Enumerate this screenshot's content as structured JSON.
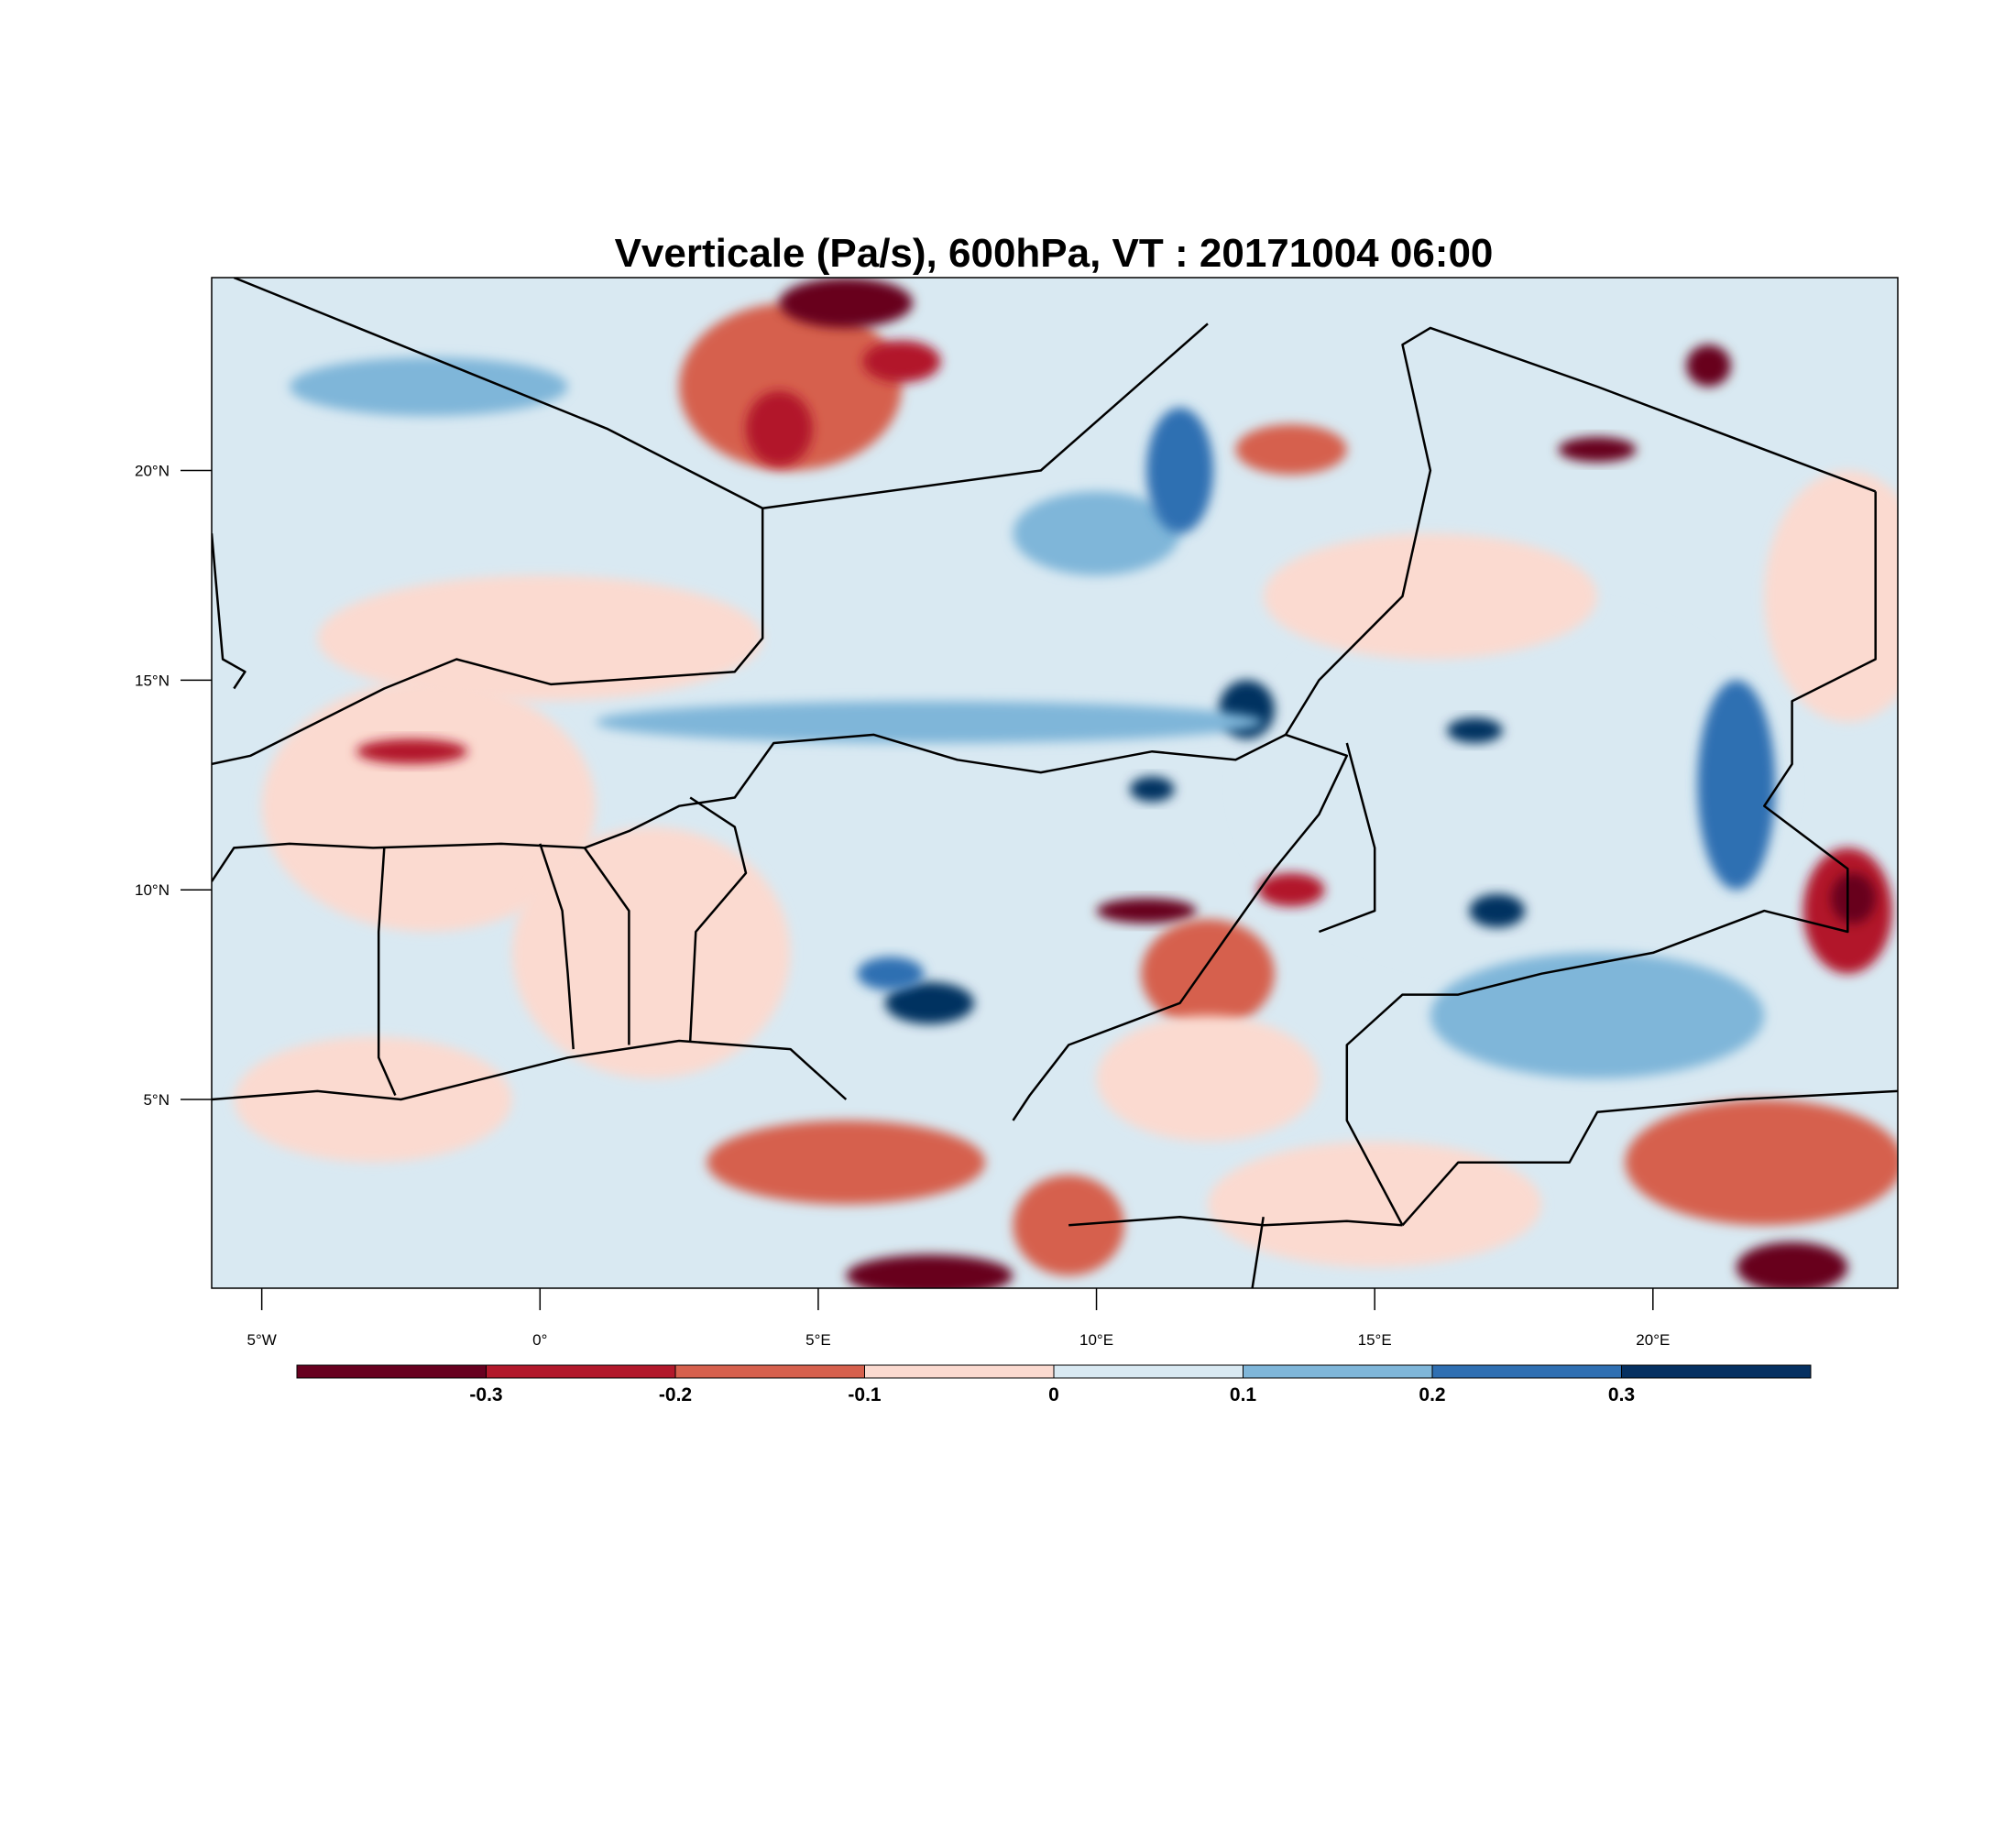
{
  "title": "Vverticale (Pa/s), 600hPa, VT : 20171004  06:00",
  "map": {
    "lon_range": [
      -5.9,
      24.4
    ],
    "lat_range": [
      0.5,
      24.6
    ],
    "lon_ticks": [
      {
        "value": -5,
        "label": "5°W"
      },
      {
        "value": 0,
        "label": "0°"
      },
      {
        "value": 5,
        "label": "5°E"
      },
      {
        "value": 10,
        "label": "10°E"
      },
      {
        "value": 15,
        "label": "15°E"
      },
      {
        "value": 20,
        "label": "20°E"
      }
    ],
    "lat_ticks": [
      {
        "value": 5,
        "label": "5°N"
      },
      {
        "value": 10,
        "label": "10°N"
      },
      {
        "value": 15,
        "label": "15°N"
      },
      {
        "value": 20,
        "label": "20°N"
      }
    ],
    "background_color": "#d9e9f2"
  },
  "colorbar": {
    "colors": [
      "#67001f",
      "#b2182b",
      "#d6604d",
      "#fbdad0",
      "#d9e9f2",
      "#7fb6d9",
      "#2f6fb2",
      "#053061"
    ],
    "labels": [
      "-0.3",
      "-0.2",
      "-0.1",
      "0",
      "0.1",
      "0.2",
      "0.3"
    ]
  },
  "fields": [
    {
      "lon": -2.0,
      "lat": 12.0,
      "rx": 3.0,
      "ry": 3.0,
      "level": 3
    },
    {
      "lon": 2.0,
      "lat": 8.5,
      "rx": 2.5,
      "ry": 3.0,
      "level": 3
    },
    {
      "lon": 0.0,
      "lat": 16.0,
      "rx": 4.0,
      "ry": 1.5,
      "level": 3
    },
    {
      "lon": 4.5,
      "lat": 22.0,
      "rx": 2.0,
      "ry": 2.0,
      "level": 2
    },
    {
      "lon": 5.5,
      "lat": 24.0,
      "rx": 1.2,
      "ry": 0.6,
      "level": 0
    },
    {
      "lon": 4.3,
      "lat": 21.0,
      "rx": 0.6,
      "ry": 0.9,
      "level": 1
    },
    {
      "lon": 6.5,
      "lat": 22.6,
      "rx": 0.7,
      "ry": 0.5,
      "level": 1
    },
    {
      "lon": 13.5,
      "lat": 20.5,
      "rx": 1.0,
      "ry": 0.6,
      "level": 2
    },
    {
      "lon": 21.0,
      "lat": 22.5,
      "rx": 0.4,
      "ry": 0.5,
      "level": 0
    },
    {
      "lon": 19.0,
      "lat": 20.5,
      "rx": 0.7,
      "ry": 0.3,
      "level": 0
    },
    {
      "lon": 17.5,
      "lat": 12.5,
      "rx": 5.0,
      "ry": 4.5,
      "level": 4
    },
    {
      "lon": 21.5,
      "lat": 12.5,
      "rx": 0.7,
      "ry": 2.5,
      "level": 6
    },
    {
      "lon": 16.8,
      "lat": 13.8,
      "rx": 0.5,
      "ry": 0.3,
      "level": 7
    },
    {
      "lon": 17.2,
      "lat": 9.5,
      "rx": 0.5,
      "ry": 0.4,
      "level": 7
    },
    {
      "lon": 12.7,
      "lat": 14.3,
      "rx": 0.5,
      "ry": 0.7,
      "level": 7
    },
    {
      "lon": 7.0,
      "lat": 7.3,
      "rx": 0.8,
      "ry": 0.5,
      "level": 7
    },
    {
      "lon": 6.3,
      "lat": 8.0,
      "rx": 0.6,
      "ry": 0.4,
      "level": 6
    },
    {
      "lon": 11.0,
      "lat": 12.4,
      "rx": 0.4,
      "ry": 0.3,
      "level": 7
    },
    {
      "lon": 23.5,
      "lat": 9.5,
      "rx": 0.8,
      "ry": 1.5,
      "level": 1
    },
    {
      "lon": 23.6,
      "lat": 9.8,
      "rx": 0.4,
      "ry": 0.6,
      "level": 0
    },
    {
      "lon": 22.0,
      "lat": 3.5,
      "rx": 2.5,
      "ry": 1.5,
      "level": 2
    },
    {
      "lon": 22.5,
      "lat": 1.0,
      "rx": 1.0,
      "ry": 0.6,
      "level": 0
    },
    {
      "lon": 7.0,
      "lat": 0.8,
      "rx": 1.5,
      "ry": 0.5,
      "level": 0
    },
    {
      "lon": -2.3,
      "lat": 13.3,
      "rx": 1.0,
      "ry": 0.3,
      "level": 1
    },
    {
      "lon": 10.9,
      "lat": 9.5,
      "rx": 0.9,
      "ry": 0.3,
      "level": 0
    },
    {
      "lon": 13.5,
      "lat": 10.0,
      "rx": 0.6,
      "ry": 0.4,
      "level": 1
    },
    {
      "lon": 5.5,
      "lat": 3.5,
      "rx": 2.5,
      "ry": 1.0,
      "level": 2
    },
    {
      "lon": 9.5,
      "lat": 2.0,
      "rx": 1.0,
      "ry": 1.2,
      "level": 2
    },
    {
      "lon": 12.0,
      "lat": 8.0,
      "rx": 1.2,
      "ry": 1.3,
      "level": 2
    },
    {
      "lon": 7.0,
      "lat": 14.0,
      "rx": 6.0,
      "ry": 0.5,
      "level": 5
    },
    {
      "lon": 10.0,
      "lat": 18.5,
      "rx": 1.5,
      "ry": 1.0,
      "level": 5
    },
    {
      "lon": 11.5,
      "lat": 20.0,
      "rx": 0.6,
      "ry": 1.5,
      "level": 6
    },
    {
      "lon": -2.0,
      "lat": 22.0,
      "rx": 2.5,
      "ry": 0.7,
      "level": 5
    },
    {
      "lon": 16.0,
      "lat": 17.0,
      "rx": 3.0,
      "ry": 1.5,
      "level": 3
    },
    {
      "lon": 12.0,
      "lat": 5.5,
      "rx": 2.0,
      "ry": 1.5,
      "level": 3
    },
    {
      "lon": -3.0,
      "lat": 5.0,
      "rx": 2.5,
      "ry": 1.5,
      "level": 3
    },
    {
      "lon": 19.0,
      "lat": 7.0,
      "rx": 3.0,
      "ry": 1.5,
      "level": 5
    },
    {
      "lon": 15.0,
      "lat": 2.5,
      "rx": 3.0,
      "ry": 1.5,
      "level": 3
    },
    {
      "lon": 23.5,
      "lat": 17.0,
      "rx": 1.5,
      "ry": 3.0,
      "level": 3
    }
  ],
  "features": [
    {
      "path": [
        [
          -5.5,
          24.6
        ],
        [
          1.2,
          21.0
        ],
        [
          4.0,
          19.1
        ],
        [
          9.0,
          20.0
        ],
        [
          12.0,
          23.5
        ]
      ]
    },
    {
      "path": [
        [
          4.0,
          19.1
        ],
        [
          4.0,
          16.0
        ],
        [
          3.5,
          15.2
        ],
        [
          0.2,
          14.9
        ],
        [
          -1.5,
          15.5
        ],
        [
          -2.8,
          14.8
        ],
        [
          -5.2,
          13.2
        ],
        [
          -5.9,
          13.0
        ]
      ]
    },
    {
      "path": [
        [
          -5.9,
          10.2
        ],
        [
          -5.5,
          11.0
        ],
        [
          -4.5,
          11.1
        ],
        [
          -3.0,
          11.0
        ],
        [
          -0.7,
          11.1
        ],
        [
          0.8,
          11.0
        ],
        [
          1.6,
          11.4
        ],
        [
          2.5,
          12.0
        ],
        [
          3.5,
          12.2
        ],
        [
          4.2,
          13.5
        ],
        [
          6.0,
          13.7
        ],
        [
          7.5,
          13.1
        ],
        [
          9.0,
          12.8
        ],
        [
          11.0,
          13.3
        ],
        [
          12.5,
          13.1
        ],
        [
          13.4,
          13.7
        ]
      ]
    },
    {
      "path": [
        [
          13.4,
          13.7
        ],
        [
          14.5,
          13.2
        ],
        [
          14.0,
          11.8
        ],
        [
          13.2,
          10.5
        ],
        [
          12.4,
          9.0
        ],
        [
          11.5,
          7.3
        ],
        [
          10.5,
          6.8
        ],
        [
          9.5,
          6.3
        ],
        [
          8.8,
          5.1
        ],
        [
          8.5,
          4.5
        ]
      ]
    },
    {
      "path": [
        [
          -5.9,
          5.0
        ],
        [
          -4.0,
          5.2
        ],
        [
          -2.5,
          5.0
        ],
        [
          -1.0,
          5.5
        ],
        [
          0.5,
          6.0
        ],
        [
          2.5,
          6.4
        ],
        [
          4.5,
          6.2
        ],
        [
          5.5,
          5.0
        ]
      ]
    },
    {
      "path": [
        [
          -2.8,
          11.0
        ],
        [
          -2.9,
          9.0
        ],
        [
          -2.9,
          6.0
        ],
        [
          -2.6,
          5.1
        ]
      ]
    },
    {
      "path": [
        [
          0.0,
          11.1
        ],
        [
          0.4,
          9.5
        ],
        [
          0.5,
          8.0
        ],
        [
          0.6,
          6.2
        ]
      ]
    },
    {
      "path": [
        [
          0.8,
          11.0
        ],
        [
          1.6,
          9.5
        ],
        [
          1.6,
          6.3
        ]
      ]
    },
    {
      "path": [
        [
          2.7,
          12.2
        ],
        [
          3.5,
          11.5
        ],
        [
          3.7,
          10.4
        ],
        [
          2.8,
          9.0
        ],
        [
          2.7,
          6.4
        ]
      ]
    },
    {
      "path": [
        [
          13.4,
          13.7
        ],
        [
          14.0,
          15.0
        ],
        [
          15.5,
          17.0
        ],
        [
          16.0,
          20.0
        ],
        [
          15.5,
          23.0
        ],
        [
          16.0,
          23.4
        ],
        [
          19.0,
          22.0
        ],
        [
          24.0,
          19.5
        ]
      ]
    },
    {
      "path": [
        [
          24.0,
          19.5
        ],
        [
          24.0,
          15.5
        ],
        [
          22.5,
          14.5
        ],
        [
          22.5,
          13.0
        ],
        [
          22.0,
          12.0
        ],
        [
          23.5,
          10.5
        ],
        [
          23.5,
          9.0
        ],
        [
          22.0,
          9.5
        ],
        [
          20.0,
          8.5
        ],
        [
          18.0,
          8.0
        ],
        [
          16.5,
          7.5
        ],
        [
          15.5,
          7.5
        ],
        [
          14.5,
          6.3
        ],
        [
          14.5,
          4.5
        ],
        [
          15.5,
          2.0
        ]
      ]
    },
    {
      "path": [
        [
          14.5,
          13.5
        ],
        [
          15.0,
          11.0
        ],
        [
          15.0,
          9.5
        ],
        [
          14.0,
          9.0
        ]
      ]
    },
    {
      "path": [
        [
          15.5,
          2.0
        ],
        [
          16.5,
          3.5
        ],
        [
          18.5,
          3.5
        ],
        [
          19.0,
          4.7
        ],
        [
          21.5,
          5.0
        ],
        [
          24.4,
          5.2
        ]
      ]
    },
    {
      "path": [
        [
          9.5,
          2.0
        ],
        [
          11.5,
          2.2
        ],
        [
          13.0,
          2.0
        ],
        [
          14.5,
          2.1
        ],
        [
          15.5,
          2.0
        ]
      ]
    },
    {
      "path": [
        [
          13.0,
          2.2
        ],
        [
          12.8,
          0.5
        ]
      ]
    },
    {
      "path": [
        [
          -5.9,
          18.5
        ],
        [
          -5.7,
          15.5
        ],
        [
          -5.3,
          15.2
        ],
        [
          -5.5,
          14.8
        ]
      ]
    }
  ]
}
